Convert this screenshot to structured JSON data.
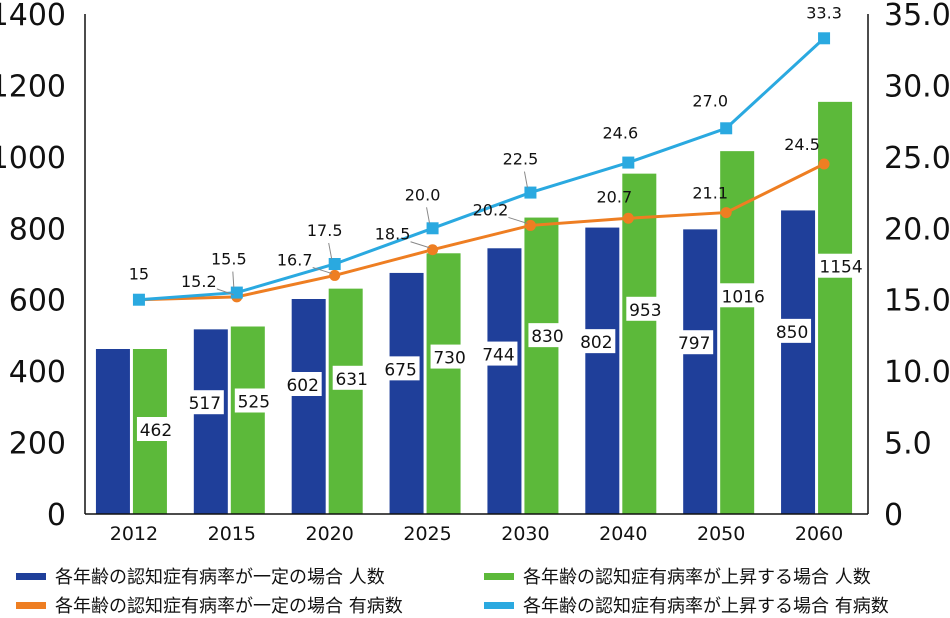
{
  "chart_data": {
    "type": "bar",
    "categories": [
      "2012",
      "2015",
      "2020",
      "2025",
      "2030",
      "2040",
      "2050",
      "2060"
    ],
    "series": [
      {
        "name": "各年齢の認知症有病率が一定の場合 人数",
        "kind": "bar",
        "axis": "left",
        "color": "#1f3f9a",
        "values": [
          462,
          517,
          602,
          675,
          744,
          802,
          797,
          850
        ],
        "labels": [
          "",
          "517",
          "602",
          "675",
          "744",
          "802",
          "797",
          "850"
        ]
      },
      {
        "name": "各年齢の認知症有病率が上昇する場合 人数",
        "kind": "bar",
        "axis": "left",
        "color": "#5cb93a",
        "values": [
          462,
          525,
          631,
          730,
          830,
          953,
          1016,
          1154
        ],
        "labels": [
          "462",
          "525",
          "631",
          "730",
          "830",
          "953",
          "1016",
          "1154"
        ]
      },
      {
        "name": "各年齢の認知症有病率が一定の場合 有病数",
        "kind": "line",
        "axis": "right",
        "color": "#ee7e22",
        "values": [
          15,
          15.2,
          16.7,
          18.5,
          20.2,
          20.7,
          21.1,
          24.5
        ],
        "labels": [
          "",
          "15.2",
          "16.7",
          "18.5",
          "20.2",
          "20.7",
          "21.1",
          "24.5"
        ]
      },
      {
        "name": "各年齢の認知症有病率が上昇する場合 有病数",
        "kind": "line",
        "axis": "right",
        "color": "#2aa9e0",
        "values": [
          15,
          15.5,
          17.5,
          20.0,
          22.5,
          24.6,
          27.0,
          33.3
        ],
        "labels": [
          "15",
          "15.5",
          "17.5",
          "20.0",
          "22.5",
          "24.6",
          "27.0",
          "33.3"
        ]
      }
    ],
    "y_left": {
      "min": 0,
      "max": 1400,
      "ticks": [
        "0",
        "200",
        "400",
        "600",
        "800",
        "1000",
        "1200",
        "1400"
      ]
    },
    "y_right": {
      "min": 0,
      "max": 35,
      "ticks": [
        "0",
        "5.0",
        "10.0",
        "15.0",
        "20.0",
        "25.0",
        "30.0",
        "35.0"
      ]
    },
    "title": "",
    "xlabel": "",
    "ylabel": "",
    "grid": false,
    "legend_position": "bottom"
  }
}
